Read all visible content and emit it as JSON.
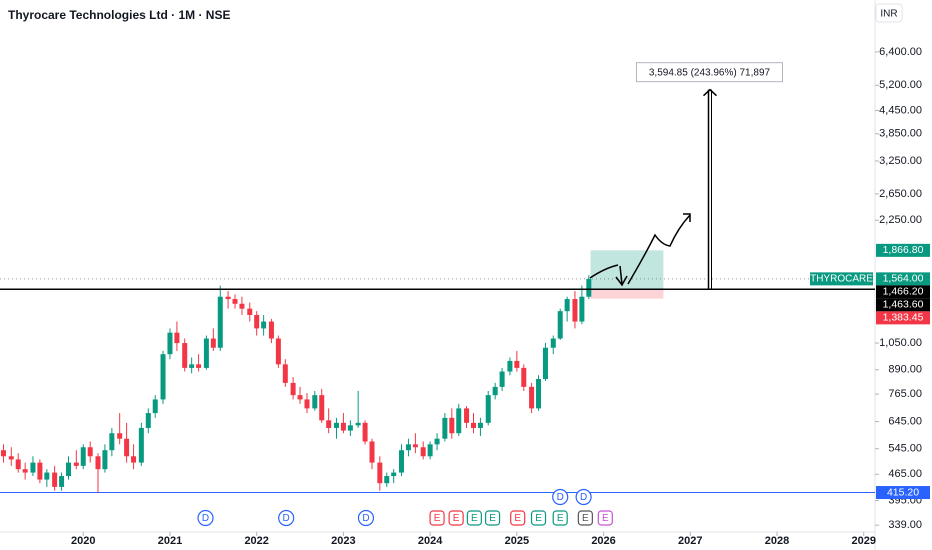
{
  "chart_data": {
    "type": "candlestick",
    "title": "Thyrocare Technologies Ltd · 1M · NSE",
    "currency": "INR",
    "log_scale": true,
    "up_color": "#089981",
    "down_color": "#f23645",
    "xlim": [
      2019.04,
      2029.13
    ],
    "xticks": [
      2020,
      2021,
      2022,
      2023,
      2024,
      2025,
      2026,
      2027,
      2028,
      2029
    ],
    "ylim": [
      325,
      8830
    ],
    "yticks": [
      {
        "value": 6400,
        "label": "6,400.00"
      },
      {
        "value": 5200,
        "label": "5,200.00"
      },
      {
        "value": 4450,
        "label": "4,450.00"
      },
      {
        "value": 3850,
        "label": "3,850.00"
      },
      {
        "value": 3250,
        "label": "3,250.00"
      },
      {
        "value": 2650,
        "label": "2,650.00"
      },
      {
        "value": 2250,
        "label": "2,250.00"
      },
      {
        "value": 1050,
        "label": "1,050.00"
      },
      {
        "value": 890,
        "label": "890.00"
      },
      {
        "value": 765,
        "label": "765.00"
      },
      {
        "value": 645,
        "label": "645.00"
      },
      {
        "value": 545,
        "label": "545.00"
      },
      {
        "value": 465,
        "label": "465.00"
      },
      {
        "value": 395,
        "label": "395.00"
      },
      {
        "value": 339,
        "label": "339.00"
      }
    ],
    "x": [
      2019.08,
      2019.17,
      2019.25,
      2019.33,
      2019.42,
      2019.5,
      2019.58,
      2019.67,
      2019.75,
      2019.83,
      2019.92,
      2020,
      2020.08,
      2020.17,
      2020.25,
      2020.33,
      2020.42,
      2020.5,
      2020.58,
      2020.67,
      2020.75,
      2020.83,
      2020.92,
      2021,
      2021.08,
      2021.17,
      2021.25,
      2021.33,
      2021.42,
      2021.5,
      2021.58,
      2021.67,
      2021.75,
      2021.83,
      2021.92,
      2022,
      2022.08,
      2022.17,
      2022.25,
      2022.33,
      2022.42,
      2022.5,
      2022.58,
      2022.67,
      2022.75,
      2022.83,
      2022.92,
      2023,
      2023.08,
      2023.17,
      2023.25,
      2023.33,
      2023.42,
      2023.5,
      2023.58,
      2023.67,
      2023.75,
      2023.83,
      2023.92,
      2024,
      2024.08,
      2024.17,
      2024.25,
      2024.33,
      2024.42,
      2024.5,
      2024.58,
      2024.67,
      2024.75,
      2024.83,
      2024.92,
      2025,
      2025.08,
      2025.17,
      2025.25,
      2025.33,
      2025.42,
      2025.5,
      2025.58,
      2025.67,
      2025.75,
      2025.83
    ],
    "open": [
      540,
      520,
      510,
      480,
      470,
      500,
      450,
      470,
      430,
      460,
      500,
      490,
      550,
      520,
      480,
      540,
      600,
      580,
      520,
      500,
      620,
      680,
      740,
      980,
      1120,
      1050,
      900,
      920,
      900,
      1080,
      1020,
      1400,
      1380,
      1340,
      1300,
      1250,
      1150,
      1200,
      1080,
      920,
      820,
      760,
      740,
      700,
      760,
      650,
      620,
      640,
      610,
      630,
      640,
      570,
      500,
      440,
      460,
      470,
      540,
      560,
      550,
      520,
      560,
      580,
      660,
      600,
      700,
      640,
      620,
      640,
      760,
      800,
      880,
      940,
      900,
      800,
      700,
      840,
      1020,
      1080,
      1280,
      1380,
      1200,
      1400
    ],
    "high": [
      560,
      550,
      530,
      500,
      520,
      510,
      480,
      490,
      470,
      520,
      540,
      560,
      570,
      530,
      560,
      620,
      680,
      640,
      560,
      640,
      700,
      760,
      1000,
      1150,
      1200,
      1080,
      960,
      980,
      1100,
      1150,
      1500,
      1450,
      1420,
      1400,
      1350,
      1280,
      1250,
      1220,
      1100,
      950,
      850,
      800,
      770,
      780,
      790,
      700,
      660,
      680,
      650,
      780,
      650,
      580,
      520,
      470,
      480,
      560,
      580,
      600,
      570,
      570,
      600,
      680,
      700,
      720,
      710,
      680,
      660,
      780,
      820,
      900,
      960,
      1000,
      920,
      820,
      860,
      1050,
      1100,
      1300,
      1400,
      1450,
      1500,
      1600
    ],
    "low": [
      500,
      490,
      470,
      450,
      460,
      440,
      430,
      420,
      420,
      450,
      480,
      480,
      500,
      415,
      470,
      520,
      560,
      500,
      480,
      490,
      600,
      660,
      720,
      950,
      1000,
      880,
      870,
      880,
      890,
      1000,
      1000,
      1300,
      1300,
      1250,
      1200,
      1100,
      1100,
      1050,
      900,
      800,
      740,
      720,
      680,
      690,
      640,
      600,
      580,
      600,
      590,
      620,
      560,
      480,
      420,
      430,
      440,
      460,
      520,
      530,
      510,
      510,
      540,
      570,
      580,
      590,
      620,
      600,
      590,
      630,
      740,
      780,
      860,
      880,
      780,
      680,
      690,
      830,
      980,
      1070,
      1200,
      1150,
      1180,
      1380
    ],
    "close": [
      520,
      510,
      480,
      470,
      500,
      450,
      470,
      430,
      460,
      500,
      490,
      550,
      520,
      480,
      540,
      600,
      580,
      520,
      500,
      620,
      680,
      740,
      980,
      1120,
      1050,
      900,
      920,
      900,
      1080,
      1020,
      1400,
      1380,
      1340,
      1300,
      1250,
      1150,
      1200,
      1080,
      920,
      820,
      760,
      740,
      700,
      760,
      650,
      620,
      640,
      610,
      630,
      640,
      570,
      500,
      440,
      460,
      470,
      540,
      560,
      550,
      520,
      560,
      580,
      660,
      600,
      700,
      640,
      620,
      640,
      760,
      800,
      880,
      940,
      900,
      800,
      700,
      840,
      1020,
      1080,
      1280,
      1380,
      1200,
      1400,
      1564
    ],
    "price_labels": [
      {
        "value": 1866.8,
        "label": "1,866.80",
        "color": "#089981"
      },
      {
        "value": 1564,
        "label": "1,564.00",
        "color": "#089981",
        "name": "THYROCARE"
      },
      {
        "value": 1466.2,
        "label": "1,466.20",
        "color": "#000000"
      },
      {
        "value": 1463.6,
        "label": "1,463.60",
        "color": "#000000"
      },
      {
        "value": 1383.45,
        "label": "1,383.45",
        "color": "#f23645"
      },
      {
        "value": 415.2,
        "label": "415.20",
        "color": "#2962ff"
      }
    ],
    "position": {
      "start": 2025.85,
      "end": 2026.69
    },
    "measure": {
      "x": 2027.21,
      "change": 3594.85,
      "label": "3,594.85 (243.96%) 71,897"
    },
    "events": [
      {
        "label": "D",
        "x": 2021.41,
        "color": "#2962ff"
      },
      {
        "label": "D",
        "x": 2022.34,
        "color": "#2962ff"
      },
      {
        "label": "D",
        "x": 2023.26,
        "color": "#2962ff"
      },
      {
        "label": "D",
        "x": 2025.5,
        "color": "#2962ff"
      },
      {
        "label": "D",
        "x": 2025.77,
        "color": "#2962ff"
      },
      {
        "label": "E",
        "x": 2024.08,
        "color": "#f23645"
      },
      {
        "label": "E",
        "x": 2024.3,
        "color": "#f23645"
      },
      {
        "label": "E",
        "x": 2024.51,
        "color": "#089981"
      },
      {
        "label": "E",
        "x": 2024.72,
        "color": "#089981"
      },
      {
        "label": "E",
        "x": 2025.01,
        "color": "#f23645"
      },
      {
        "label": "E",
        "x": 2025.25,
        "color": "#089981"
      },
      {
        "label": "E",
        "x": 2025.5,
        "color": "#089981"
      },
      {
        "label": "E",
        "x": 2025.79,
        "color": "#555555"
      },
      {
        "label": "E",
        "x": 2026.02,
        "color": "#c94fd6"
      }
    ]
  }
}
